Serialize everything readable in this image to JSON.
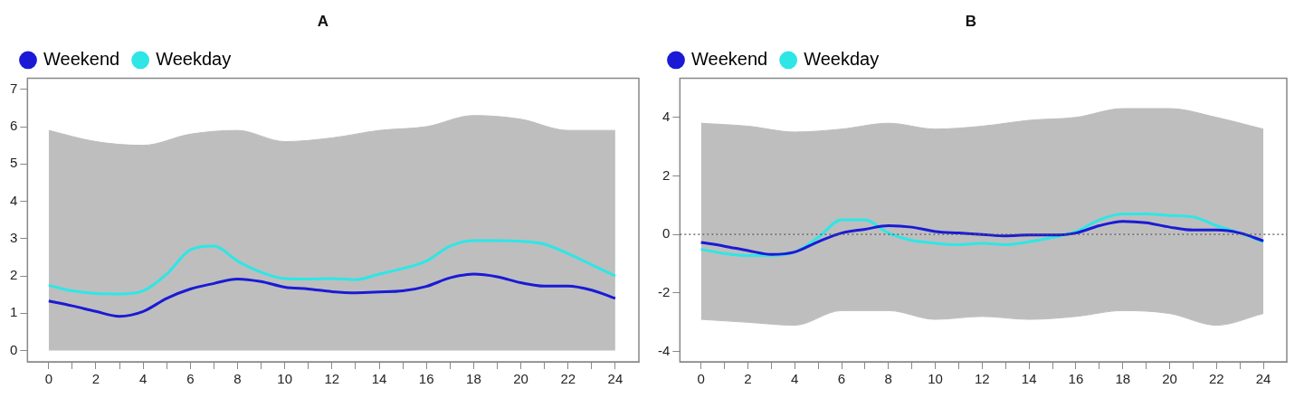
{
  "chart_data": [
    {
      "type": "line",
      "title": "A",
      "xlim": [
        -0.9,
        25
      ],
      "ylim": [
        -0.3,
        7.3
      ],
      "xticks": [
        0,
        {
          "value": 1,
          "label": null
        },
        2,
        {
          "value": 3,
          "label": null
        },
        4,
        {
          "value": 5,
          "label": null
        },
        6,
        {
          "value": 7,
          "label": null
        },
        8,
        {
          "value": 9,
          "label": null
        },
        10,
        {
          "value": 11,
          "label": null
        },
        12,
        {
          "value": 13,
          "label": null
        },
        14,
        {
          "value": 15,
          "label": null
        },
        16,
        {
          "value": 17,
          "label": null
        },
        18,
        {
          "value": 19,
          "label": null
        },
        20,
        {
          "value": 21,
          "label": null
        },
        22,
        {
          "value": 23,
          "label": null
        },
        24
      ],
      "yticks": [
        0,
        1,
        2,
        3,
        4,
        5,
        6,
        7
      ],
      "legend": "top left",
      "grid": false,
      "x": [
        0,
        1,
        2,
        3,
        4,
        5,
        6,
        7,
        8,
        9,
        10,
        11,
        12,
        13,
        14,
        15,
        16,
        17,
        18,
        19,
        20,
        21,
        22,
        23,
        24
      ],
      "series": [
        {
          "type": "area",
          "color": "#bebebe",
          "x": [
            0,
            2,
            4,
            6,
            8,
            10,
            12,
            14,
            16,
            18,
            20,
            22,
            24
          ],
          "values": [
            5.9,
            5.6,
            5.5,
            5.8,
            5.9,
            5.6,
            5.7,
            5.9,
            6.0,
            6.3,
            6.2,
            5.9,
            5.9
          ]
        },
        {
          "name": "Weekend",
          "color": "#1a1ad6",
          "values": [
            1.33,
            1.2,
            1.05,
            0.92,
            1.05,
            1.4,
            1.65,
            1.8,
            1.92,
            1.85,
            1.7,
            1.65,
            1.58,
            1.55,
            1.57,
            1.6,
            1.72,
            1.95,
            2.05,
            1.98,
            1.82,
            1.73,
            1.73,
            1.62,
            1.4
          ]
        },
        {
          "name": "Weekday",
          "color": "#2ee6e6",
          "values": [
            1.75,
            1.6,
            1.53,
            1.52,
            1.6,
            2.05,
            2.7,
            2.8,
            2.4,
            2.1,
            1.93,
            1.92,
            1.93,
            1.9,
            2.05,
            2.2,
            2.4,
            2.8,
            2.95,
            2.95,
            2.93,
            2.85,
            2.6,
            2.3,
            2.0
          ]
        }
      ]
    },
    {
      "type": "line",
      "title": "B",
      "xlim": [
        -0.9,
        25
      ],
      "ylim": [
        -4.35,
        5.34
      ],
      "xticks": [
        0,
        {
          "value": 1,
          "label": null
        },
        2,
        {
          "value": 3,
          "label": null
        },
        4,
        {
          "value": 5,
          "label": null
        },
        6,
        {
          "value": 7,
          "label": null
        },
        8,
        {
          "value": 9,
          "label": null
        },
        10,
        {
          "value": 11,
          "label": null
        },
        12,
        {
          "value": 13,
          "label": null
        },
        14,
        {
          "value": 15,
          "label": null
        },
        16,
        {
          "value": 17,
          "label": null
        },
        18,
        {
          "value": 19,
          "label": null
        },
        20,
        {
          "value": 21,
          "label": null
        },
        22,
        {
          "value": 23,
          "label": null
        },
        24
      ],
      "yticks": [
        -4,
        -2,
        0,
        2,
        4
      ],
      "legend": "top left",
      "grid": false,
      "ref_lines": [
        {
          "axis": "y",
          "value": 0,
          "color": "#555555",
          "line_style": "dotted"
        }
      ],
      "x": [
        0,
        1,
        2,
        3,
        4,
        5,
        6,
        7,
        8,
        9,
        10,
        11,
        12,
        13,
        14,
        15,
        16,
        17,
        18,
        19,
        20,
        21,
        22,
        23,
        24
      ],
      "series": [
        {
          "type": "area",
          "color": "#bebebe",
          "x": [
            0,
            2,
            4,
            6,
            8,
            10,
            12,
            14,
            16,
            18,
            20,
            22,
            24
          ],
          "values": [
            3.8,
            3.7,
            3.5,
            3.6,
            3.8,
            3.6,
            3.7,
            3.9,
            4.0,
            4.3,
            4.3,
            4.0,
            3.6
          ]
        },
        {
          "type": "area",
          "color": "#bebebe",
          "x": [
            0,
            2,
            4,
            6,
            8,
            10,
            12,
            14,
            16,
            18,
            20,
            22,
            24
          ],
          "values": [
            -2.9,
            -3.0,
            -3.1,
            -2.6,
            -2.6,
            -2.9,
            -2.8,
            -2.9,
            -2.8,
            -2.6,
            -2.7,
            -3.1,
            -2.7
          ]
        },
        {
          "name": "Weekend",
          "color": "#1a1ad6",
          "values": [
            -0.27,
            -0.4,
            -0.55,
            -0.68,
            -0.6,
            -0.25,
            0.05,
            0.18,
            0.3,
            0.25,
            0.1,
            0.05,
            0,
            -0.05,
            -0.02,
            -0.02,
            0.05,
            0.3,
            0.45,
            0.4,
            0.25,
            0.15,
            0.15,
            0.05,
            -0.22
          ]
        },
        {
          "name": "Weekday",
          "color": "#2ee6e6",
          "values": [
            -0.5,
            -0.65,
            -0.72,
            -0.72,
            -0.6,
            -0.1,
            0.5,
            0.5,
            0.05,
            -0.2,
            -0.3,
            -0.35,
            -0.3,
            -0.35,
            -0.25,
            -0.1,
            0.1,
            0.5,
            0.7,
            0.7,
            0.65,
            0.6,
            0.3,
            0.05,
            -0.25
          ]
        }
      ]
    }
  ]
}
